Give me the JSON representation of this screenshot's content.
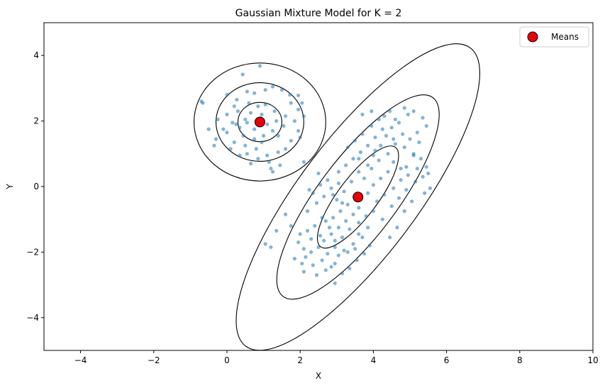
{
  "chart_data": {
    "type": "scatter",
    "title": "Gaussian Mixture Model for K = 2",
    "xlabel": "X",
    "ylabel": "Y",
    "xlim": [
      -5,
      10
    ],
    "ylim": [
      -5,
      5
    ],
    "xticks": [
      -4,
      -2,
      0,
      2,
      4,
      6,
      8,
      10
    ],
    "yticks": [
      -4,
      -2,
      0,
      2,
      4
    ],
    "xtick_labels": [
      "−4",
      "−2",
      "0",
      "2",
      "4",
      "6",
      "8",
      "10"
    ],
    "ytick_labels": [
      "−4",
      "−2",
      "0",
      "2",
      "4"
    ],
    "grid": false,
    "legend": {
      "placement": "top-right",
      "entries": [
        "Means"
      ]
    },
    "colors": {
      "points": "#1f77b4",
      "means": "#e8000b",
      "contours": "#000000"
    },
    "series": [
      {
        "name": "",
        "points": [
          [
            0.9,
            3.68
          ],
          [
            0.43,
            3.42
          ],
          [
            -0.7,
            2.6
          ],
          [
            -0.66,
            2.55
          ],
          [
            0.0,
            2.8
          ],
          [
            0.27,
            2.65
          ],
          [
            0.55,
            2.9
          ],
          [
            0.75,
            2.85
          ],
          [
            1.05,
            2.95
          ],
          [
            1.25,
            3.05
          ],
          [
            1.5,
            2.95
          ],
          [
            1.72,
            2.8
          ],
          [
            1.95,
            2.78
          ],
          [
            1.75,
            2.55
          ],
          [
            2.05,
            2.55
          ],
          [
            1.95,
            2.35
          ],
          [
            2.1,
            2.15
          ],
          [
            1.95,
            1.7
          ],
          [
            2.0,
            1.5
          ],
          [
            1.75,
            1.4
          ],
          [
            1.4,
            1.55
          ],
          [
            1.55,
            1.85
          ],
          [
            1.25,
            1.7
          ],
          [
            1.1,
            1.9
          ],
          [
            0.95,
            2.2
          ],
          [
            0.85,
            2.45
          ],
          [
            0.65,
            2.25
          ],
          [
            0.5,
            2.05
          ],
          [
            0.35,
            1.8
          ],
          [
            0.15,
            1.95
          ],
          [
            0.0,
            2.2
          ],
          [
            -0.25,
            2.05
          ],
          [
            -0.5,
            1.75
          ],
          [
            -0.3,
            1.45
          ],
          [
            0.0,
            1.65
          ],
          [
            0.2,
            1.35
          ],
          [
            0.5,
            1.25
          ],
          [
            0.75,
            1.45
          ],
          [
            1.0,
            1.55
          ],
          [
            0.8,
            1.15
          ],
          [
            0.55,
            1.0
          ],
          [
            0.35,
            0.95
          ],
          [
            0.1,
            1.15
          ],
          [
            -0.35,
            1.25
          ],
          [
            0.85,
            0.85
          ],
          [
            1.1,
            0.95
          ],
          [
            1.4,
            1.05
          ],
          [
            1.15,
            0.75
          ],
          [
            0.65,
            0.7
          ],
          [
            1.2,
            0.55
          ],
          [
            1.25,
            0.45
          ],
          [
            1.45,
            0.65
          ],
          [
            0.85,
            2.05
          ],
          [
            1.3,
            2.3
          ],
          [
            1.05,
            2.5
          ],
          [
            0.6,
            2.55
          ],
          [
            0.3,
            2.3
          ],
          [
            0.45,
            1.55
          ],
          [
            0.25,
            1.9
          ],
          [
            0.75,
            1.75
          ],
          [
            1.6,
            2.15
          ],
          [
            1.85,
            2.0
          ],
          [
            1.35,
            2.0
          ],
          [
            0.95,
            1.35
          ],
          [
            0.55,
            1.95
          ],
          [
            0.2,
            2.45
          ],
          [
            -0.1,
            1.75
          ],
          [
            1.6,
            1.15
          ],
          [
            2.1,
            0.75
          ],
          [
            2.5,
            0.4
          ],
          [
            2.25,
            -0.1
          ],
          [
            2.75,
            0.2
          ],
          [
            2.9,
            -0.25
          ],
          [
            2.45,
            -0.5
          ],
          [
            2.2,
            -0.75
          ],
          [
            2.6,
            -0.95
          ],
          [
            2.8,
            -1.25
          ],
          [
            2.55,
            -1.5
          ],
          [
            2.3,
            -1.6
          ],
          [
            2.1,
            -1.9
          ],
          [
            2.0,
            -1.45
          ],
          [
            1.75,
            -1.2
          ],
          [
            1.6,
            -0.85
          ],
          [
            1.35,
            -1.35
          ],
          [
            1.05,
            -1.75
          ],
          [
            1.2,
            -1.85
          ],
          [
            1.85,
            -2.2
          ],
          [
            2.15,
            -2.15
          ],
          [
            2.35,
            -2.4
          ],
          [
            2.1,
            -2.6
          ],
          [
            2.45,
            -2.7
          ],
          [
            2.7,
            -2.55
          ],
          [
            2.95,
            -2.35
          ],
          [
            3.15,
            -2.65
          ],
          [
            2.95,
            -2.95
          ],
          [
            3.35,
            -2.5
          ],
          [
            3.55,
            -2.25
          ],
          [
            3.75,
            -2.05
          ],
          [
            3.9,
            -1.8
          ],
          [
            3.7,
            -1.55
          ],
          [
            3.45,
            -1.75
          ],
          [
            3.2,
            -1.95
          ],
          [
            2.95,
            -1.85
          ],
          [
            2.75,
            -2.05
          ],
          [
            2.5,
            -1.85
          ],
          [
            2.65,
            -1.65
          ],
          [
            2.85,
            -1.45
          ],
          [
            3.05,
            -1.25
          ],
          [
            3.25,
            -1.05
          ],
          [
            3.45,
            -0.85
          ],
          [
            3.6,
            -0.65
          ],
          [
            3.3,
            -0.55
          ],
          [
            3.1,
            -0.75
          ],
          [
            2.9,
            -0.95
          ],
          [
            3.0,
            -0.4
          ],
          [
            3.2,
            -0.15
          ],
          [
            3.4,
            0.15
          ],
          [
            3.6,
            0.45
          ],
          [
            3.85,
            0.65
          ],
          [
            4.0,
            0.95
          ],
          [
            4.2,
            1.25
          ],
          [
            4.35,
            1.55
          ],
          [
            4.5,
            1.8
          ],
          [
            4.7,
            1.95
          ],
          [
            4.95,
            2.2
          ],
          [
            5.1,
            2.3
          ],
          [
            5.35,
            2.1
          ],
          [
            5.45,
            1.85
          ],
          [
            5.2,
            1.65
          ],
          [
            5.0,
            1.45
          ],
          [
            4.85,
            1.2
          ],
          [
            5.1,
            1.0
          ],
          [
            5.3,
            0.85
          ],
          [
            5.45,
            0.6
          ],
          [
            5.35,
            0.3
          ],
          [
            5.15,
            0.15
          ],
          [
            4.95,
            0.35
          ],
          [
            4.75,
            0.55
          ],
          [
            4.55,
            0.75
          ],
          [
            4.4,
            0.45
          ],
          [
            4.2,
            0.25
          ],
          [
            4.0,
            0.05
          ],
          [
            3.85,
            -0.2
          ],
          [
            4.1,
            -0.45
          ],
          [
            4.3,
            -0.25
          ],
          [
            4.55,
            -0.05
          ],
          [
            4.75,
            0.2
          ],
          [
            4.9,
            0.6
          ],
          [
            5.2,
            0.55
          ],
          [
            5.5,
            0.4
          ],
          [
            5.55,
            -0.05
          ],
          [
            5.4,
            -0.2
          ],
          [
            4.4,
            1.0
          ],
          [
            4.6,
            1.3
          ],
          [
            4.25,
            1.75
          ],
          [
            4.05,
            1.5
          ],
          [
            3.85,
            1.25
          ],
          [
            3.65,
            1.05
          ],
          [
            3.45,
            0.85
          ],
          [
            3.25,
            0.65
          ],
          [
            3.05,
            0.45
          ],
          [
            3.75,
            0.25
          ],
          [
            3.95,
            0.55
          ],
          [
            4.15,
            0.8
          ],
          [
            4.45,
            2.3
          ],
          [
            4.15,
            2.05
          ],
          [
            3.95,
            1.85
          ],
          [
            3.7,
            1.6
          ],
          [
            3.5,
            1.4
          ],
          [
            3.3,
            1.2
          ],
          [
            4.0,
            -0.75
          ],
          [
            4.25,
            -1.0
          ],
          [
            4.5,
            -0.6
          ],
          [
            4.7,
            -0.35
          ],
          [
            4.9,
            -0.1
          ],
          [
            5.1,
            0.95
          ],
          [
            4.8,
            1.6
          ],
          [
            4.6,
            2.05
          ],
          [
            3.85,
            -1.25
          ],
          [
            3.6,
            -1.45
          ],
          [
            3.35,
            -1.3
          ],
          [
            3.15,
            -1.55
          ],
          [
            2.95,
            -1.65
          ],
          [
            2.7,
            -1.05
          ],
          [
            2.4,
            -1.2
          ],
          [
            2.2,
            -1.35
          ],
          [
            1.95,
            -1.7
          ],
          [
            2.6,
            -2.25
          ],
          [
            2.85,
            -2.45
          ],
          [
            3.05,
            -2.1
          ],
          [
            3.3,
            -2.0
          ],
          [
            3.5,
            -1.9
          ],
          [
            2.3,
            -2.0
          ],
          [
            2.05,
            -2.35
          ],
          [
            3.6,
            -1.1
          ],
          [
            3.8,
            -0.9
          ],
          [
            2.65,
            -0.3
          ],
          [
            2.85,
            -0.05
          ],
          [
            3.05,
            0.1
          ],
          [
            4.65,
            -1.25
          ],
          [
            4.45,
            -1.55
          ],
          [
            4.85,
            -0.75
          ],
          [
            5.05,
            -0.45
          ],
          [
            3.7,
            2.2
          ],
          [
            3.95,
            2.3
          ],
          [
            4.3,
            2.15
          ],
          [
            4.85,
            2.4
          ],
          [
            5.25,
            1.35
          ],
          [
            4.55,
            1.45
          ],
          [
            4.05,
            1.1
          ],
          [
            3.6,
            0.85
          ],
          [
            3.15,
            -0.5
          ],
          [
            2.35,
            -0.2
          ],
          [
            2.55,
            0.05
          ]
        ]
      }
    ],
    "means": [
      [
        0.9,
        1.97
      ],
      [
        3.58,
        -0.32
      ]
    ],
    "ellipses": [
      {
        "cx": 0.9,
        "cy": 1.97,
        "rx": 0.6,
        "ry": 0.6,
        "angle": 0
      },
      {
        "cx": 0.9,
        "cy": 1.97,
        "rx": 1.2,
        "ry": 1.2,
        "angle": 0
      },
      {
        "cx": 0.9,
        "cy": 1.97,
        "rx": 1.8,
        "ry": 1.8,
        "angle": 0
      },
      {
        "cx": 3.58,
        "cy": -0.32,
        "rx": 1.7,
        "ry": 0.6,
        "angle": 53
      },
      {
        "cx": 3.58,
        "cy": -0.32,
        "rx": 3.4,
        "ry": 1.2,
        "angle": 53
      },
      {
        "cx": 3.58,
        "cy": -0.32,
        "rx": 5.1,
        "ry": 1.8,
        "angle": 53
      }
    ]
  }
}
